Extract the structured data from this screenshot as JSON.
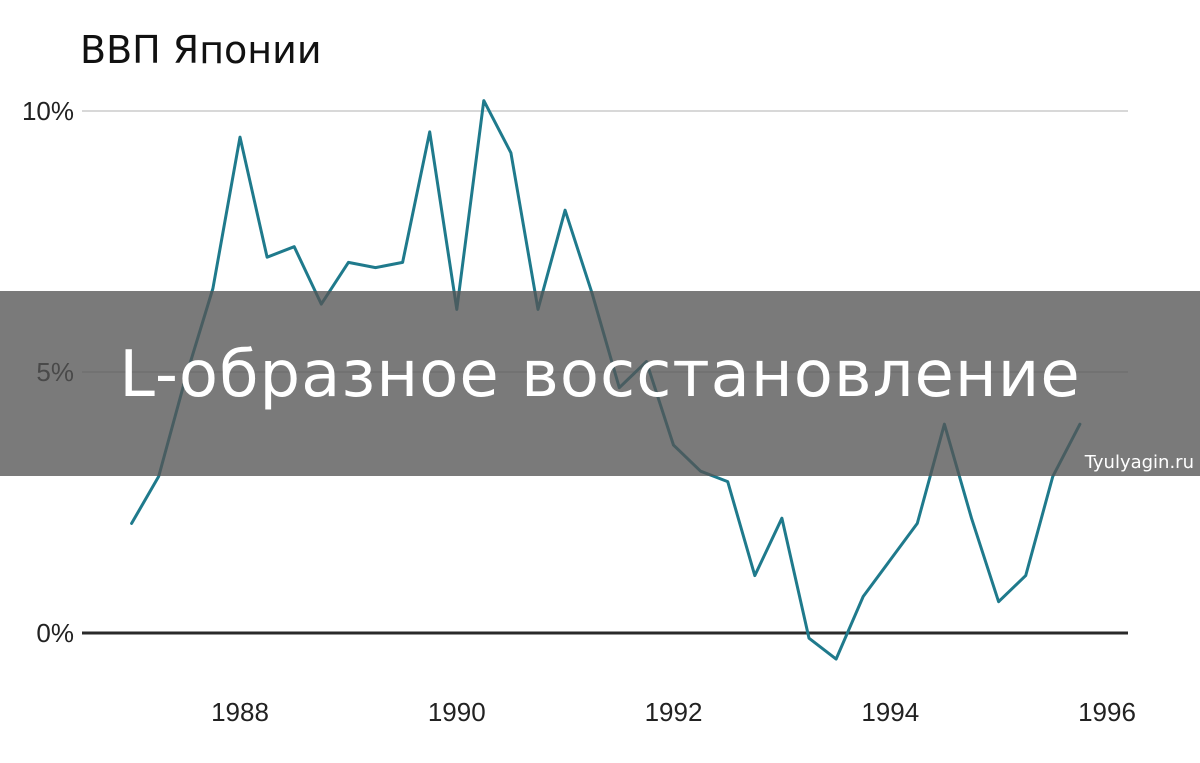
{
  "chart_data": {
    "type": "line",
    "title": "ВВП Японии",
    "xlabel": "",
    "ylabel": "",
    "xlim": [
      1986.6,
      1996.2
    ],
    "ylim": [
      -0.6,
      10.5
    ],
    "y_ticks": [
      {
        "value": 0,
        "label": "0%"
      },
      {
        "value": 5,
        "label": "5%"
      },
      {
        "value": 10,
        "label": "10%"
      }
    ],
    "x_ticks": [
      {
        "value": 1988,
        "label": "1988"
      },
      {
        "value": 1990,
        "label": "1990"
      },
      {
        "value": 1992,
        "label": "1992"
      },
      {
        "value": 1994,
        "label": "1994"
      },
      {
        "value": 1996,
        "label": "1996"
      }
    ],
    "grid": true,
    "series": [
      {
        "color": "#1f7a8c",
        "x": [
          1987.0,
          1987.25,
          1987.5,
          1987.75,
          1988.0,
          1988.25,
          1988.5,
          1988.75,
          1989.0,
          1989.25,
          1989.5,
          1989.75,
          1990.0,
          1990.25,
          1990.5,
          1990.75,
          1991.0,
          1991.25,
          1991.5,
          1991.75,
          1992.0,
          1992.25,
          1992.5,
          1992.75,
          1993.0,
          1993.25,
          1993.5,
          1993.75,
          1994.0,
          1994.25,
          1994.5,
          1994.75,
          1995.0,
          1995.25,
          1995.5,
          1995.75
        ],
        "values": [
          2.1,
          3.0,
          4.9,
          6.6,
          9.5,
          7.2,
          7.4,
          6.3,
          7.1,
          7.0,
          7.1,
          9.6,
          6.2,
          10.2,
          9.2,
          6.2,
          8.1,
          6.5,
          4.7,
          5.2,
          3.6,
          3.1,
          2.9,
          1.1,
          2.2,
          -0.1,
          -0.5,
          0.7,
          1.4,
          2.1,
          4.0,
          2.2,
          0.6,
          1.1,
          3.0,
          4.0
        ]
      }
    ]
  },
  "overlay": {
    "headline": "L-образное восстановление",
    "watermark": "Tyulyagin.ru"
  }
}
